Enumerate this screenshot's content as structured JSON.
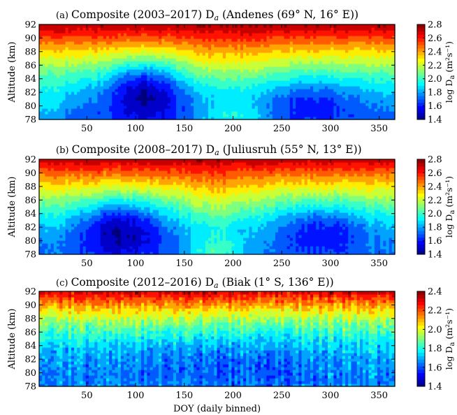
{
  "colormap": [
    "#00007f",
    "#0000ff",
    "#007fff",
    "#00ffff",
    "#7fff7f",
    "#ffff00",
    "#ff7f00",
    "#ff0000",
    "#7f0000"
  ],
  "chart_data": [
    {
      "type": "heatmap",
      "panel_tag": "(a)",
      "title_pre": "Composite (2003–2017) D",
      "title_sub": "a",
      "title_post": "(Andenes (69° N, 16° E))",
      "ylabel": "Altitude (km)",
      "xlabel": "",
      "xlim": [
        1,
        366
      ],
      "ylim": [
        78,
        92
      ],
      "xticks": [
        "50",
        "100",
        "150",
        "200",
        "250",
        "300",
        "350"
      ],
      "yticks": [
        "78",
        "80",
        "82",
        "84",
        "86",
        "88",
        "90",
        "92"
      ],
      "colorbar": {
        "label_pre": "log D",
        "label_sub": "a",
        "label_units": "(m²s⁻¹)",
        "ticks": [
          "1.4",
          "1.6",
          "1.8",
          "2.0",
          "2.2",
          "2.4",
          "2.6",
          "2.8"
        ],
        "range": [
          1.4,
          2.8
        ]
      },
      "model": {
        "base_low": 1.72,
        "base_high": 2.75,
        "exp": 1.6,
        "features": [
          {
            "doy": 110,
            "alt": 82.5,
            "amp": -0.42,
            "sdoy": 38,
            "salt": 4.5
          },
          {
            "doy": 280,
            "alt": 81.0,
            "amp": -0.18,
            "sdoy": 45,
            "salt": 3.5
          },
          {
            "doy": 200,
            "alt": 78.5,
            "amp": 0.22,
            "sdoy": 35,
            "salt": 2.2
          },
          {
            "doy": 190,
            "alt": 86.0,
            "amp": 0.08,
            "sdoy": 50,
            "salt": 5.0
          },
          {
            "doy": 10,
            "alt": 80.0,
            "amp": 0.12,
            "sdoy": 15,
            "salt": 3.0
          }
        ],
        "noise": 0.04
      }
    },
    {
      "type": "heatmap",
      "panel_tag": "(b)",
      "title_pre": "Composite (2008–2017) D",
      "title_sub": "a",
      "title_post": "(Juliusruh (55° N, 13° E))",
      "ylabel": "Altitude (km)",
      "xlabel": "",
      "xlim": [
        1,
        366
      ],
      "ylim": [
        78,
        92
      ],
      "xticks": [
        "50",
        "100",
        "150",
        "200",
        "250",
        "300",
        "350"
      ],
      "yticks": [
        "78",
        "80",
        "82",
        "84",
        "86",
        "88",
        "90",
        "92"
      ],
      "colorbar": {
        "label_pre": "log D",
        "label_sub": "a",
        "label_units": "(m²s⁻¹)",
        "ticks": [
          "1.4",
          "1.6",
          "1.8",
          "2.0",
          "2.2",
          "2.4",
          "2.6",
          "2.8"
        ],
        "range": [
          1.4,
          2.8
        ]
      },
      "model": {
        "base_low": 1.75,
        "base_high": 2.72,
        "exp": 1.7,
        "features": [
          {
            "doy": 85,
            "alt": 82.0,
            "amp": -0.4,
            "sdoy": 45,
            "salt": 4.5
          },
          {
            "doy": 290,
            "alt": 82.0,
            "amp": -0.25,
            "sdoy": 45,
            "salt": 4.0
          },
          {
            "doy": 185,
            "alt": 78.5,
            "amp": 0.25,
            "sdoy": 30,
            "salt": 2.5
          },
          {
            "doy": 185,
            "alt": 86.0,
            "amp": 0.1,
            "sdoy": 35,
            "salt": 5.0
          }
        ],
        "noise": 0.05
      }
    },
    {
      "type": "heatmap",
      "panel_tag": "(c)",
      "title_pre": "Composite (2012–2016) D",
      "title_sub": "a",
      "title_post": "(Biak (1° S, 136° E))",
      "ylabel": "Altitude (km)",
      "xlabel": "DOY (daily binned)",
      "xlim": [
        1,
        366
      ],
      "ylim": [
        78,
        92
      ],
      "xticks": [
        "50",
        "100",
        "150",
        "200",
        "250",
        "300",
        "350"
      ],
      "yticks": [
        "78",
        "80",
        "82",
        "84",
        "86",
        "88",
        "90",
        "92"
      ],
      "colorbar": {
        "label_pre": "log D",
        "label_sub": "a",
        "label_units": "(m²s⁻¹)",
        "ticks": [
          "1.4",
          "1.6",
          "1.8",
          "2.0",
          "2.2",
          "2.4"
        ],
        "range": [
          1.4,
          2.4
        ]
      },
      "model": {
        "base_low": 1.66,
        "base_high": 2.32,
        "exp": 2.4,
        "features": [
          {
            "doy": 180,
            "alt": 82.0,
            "amp": -0.06,
            "sdoy": 120,
            "salt": 4.0
          }
        ],
        "noise": 0.09
      }
    }
  ]
}
